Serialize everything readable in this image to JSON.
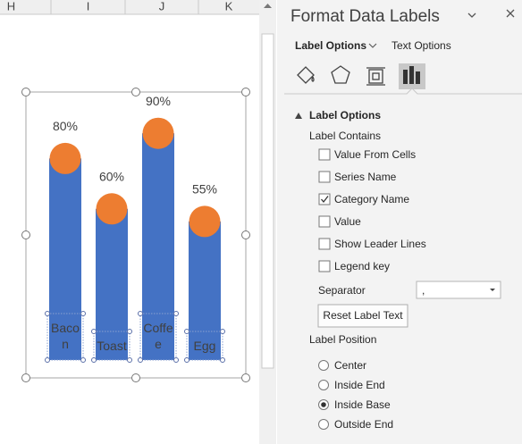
{
  "sheet": {
    "columns": [
      "H",
      "I",
      "J",
      "K"
    ]
  },
  "chart_data": {
    "type": "bar",
    "categories": [
      "Bacon",
      "Toast",
      "Coffee",
      "Egg"
    ],
    "values": [
      80,
      60,
      90,
      55
    ],
    "value_labels": [
      "80%",
      "60%",
      "90%",
      "55%"
    ],
    "color": "#4472c4",
    "marker_color": "#ed7d31",
    "ylim": [
      0,
      100
    ]
  },
  "pane": {
    "title": "Format Data Labels",
    "tabs": [
      "Label Options",
      "Text Options"
    ],
    "section": "Label Options",
    "contains_heading": "Label Contains",
    "checkboxes": [
      {
        "label": "Value From Cells",
        "checked": false
      },
      {
        "label": "Series Name",
        "checked": false
      },
      {
        "label": "Category Name",
        "checked": true
      },
      {
        "label": "Value",
        "checked": false
      },
      {
        "label": "Show Leader Lines",
        "checked": false
      },
      {
        "label": "Legend key",
        "checked": false
      }
    ],
    "separator_label": "Separator",
    "separator_value": ",",
    "reset_button": "Reset Label Text",
    "position_heading": "Label Position",
    "radios": [
      {
        "label": "Center",
        "checked": false
      },
      {
        "label": "Inside End",
        "checked": false
      },
      {
        "label": "Inside Base",
        "checked": true
      },
      {
        "label": "Outside End",
        "checked": false
      }
    ]
  }
}
